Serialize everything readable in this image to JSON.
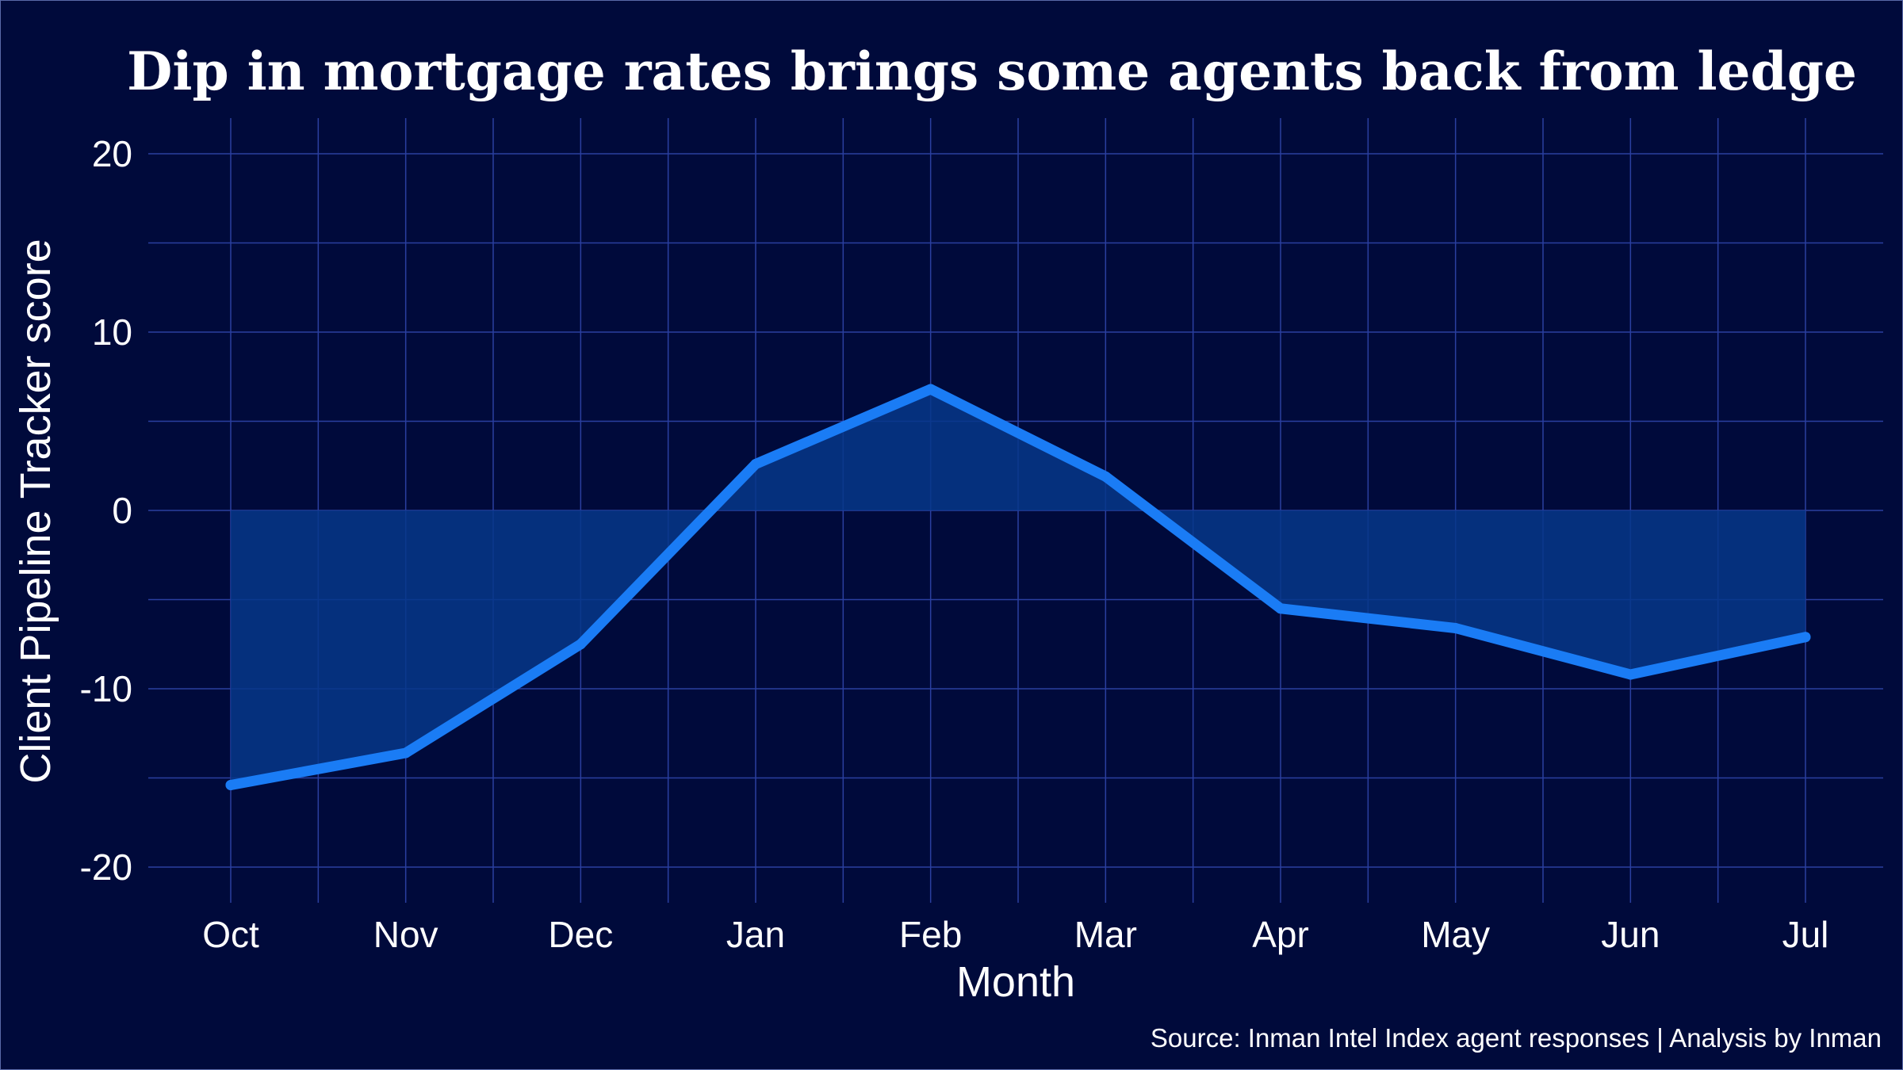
{
  "chart_data": {
    "type": "area",
    "title": "Dip in mortgage rates brings some agents back from ledge",
    "xlabel": "Month",
    "ylabel": "Client Pipeline Tracker score",
    "caption": "Source: Inman Intel Index agent responses | Analysis by Inman",
    "categories": [
      "Oct",
      "Nov",
      "Dec",
      "Jan",
      "Feb",
      "Mar",
      "Apr",
      "May",
      "Jun",
      "Jul"
    ],
    "series": [
      {
        "values": [
          -15.4,
          -13.6,
          -7.5,
          2.6,
          6.8,
          1.9,
          -5.5,
          -6.6,
          -9.2,
          -7.1
        ]
      }
    ],
    "ylim": [
      -22,
      22
    ],
    "yticks": [
      "-20",
      "-10",
      "0",
      "10",
      "20"
    ],
    "grid": true,
    "legend": "none",
    "colors": {
      "background": "#000a3b",
      "grid": "#2a3fa0",
      "line": "#1a7cf5",
      "fill": "#06378a",
      "text": "#ffffff"
    }
  }
}
